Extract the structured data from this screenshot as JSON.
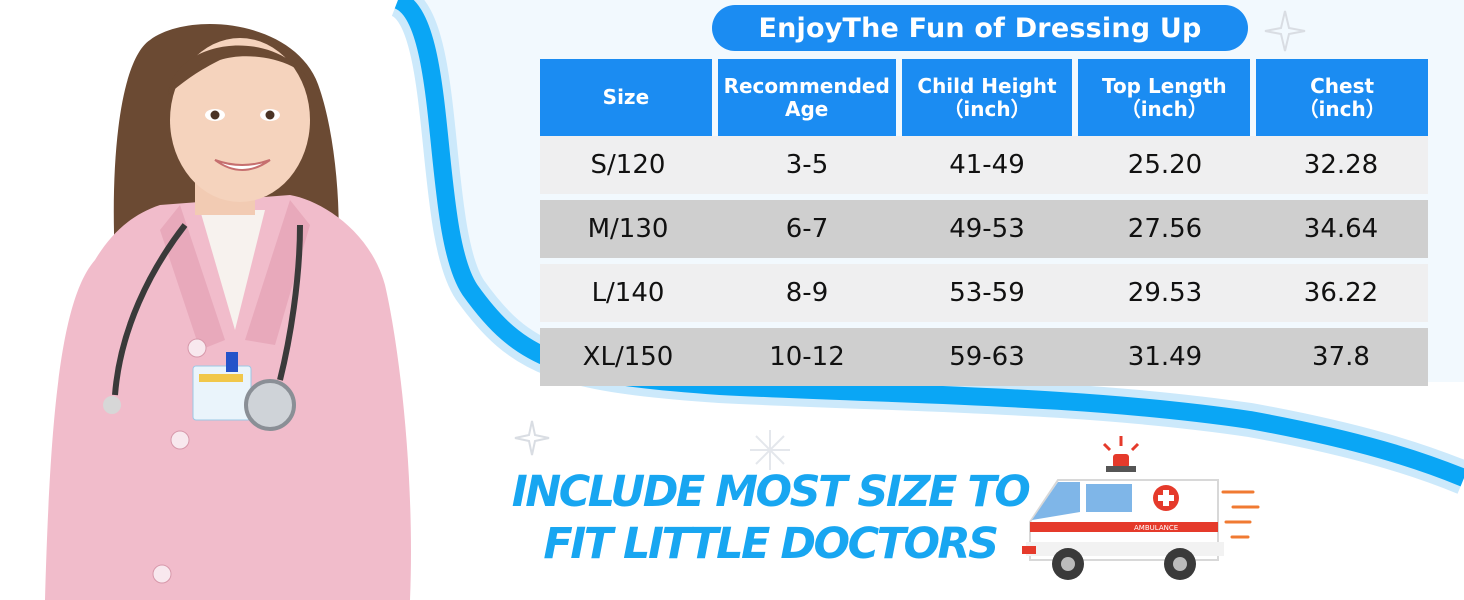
{
  "title": "EnjoyThe Fun of Dressing Up",
  "table": {
    "headers": [
      [
        "Size"
      ],
      [
        "Recommended",
        "Age"
      ],
      [
        "Child Height",
        "（inch）"
      ],
      [
        "Top Length",
        "（inch）"
      ],
      [
        "Chest",
        "（inch）"
      ]
    ],
    "rows": [
      [
        "S/120",
        "3-5",
        "41-49",
        "25.20",
        "32.28"
      ],
      [
        "M/130",
        "6-7",
        "49-53",
        "27.56",
        "34.64"
      ],
      [
        "L/140",
        "8-9",
        "53-59",
        "29.53",
        "36.22"
      ],
      [
        "XL/150",
        "10-12",
        "59-63",
        "31.49",
        "37.8"
      ]
    ]
  },
  "slogan": {
    "line1": "INCLUDE MOST SIZE TO",
    "line2": "FIT LITTLE DOCTORS"
  },
  "ambulance_label": "AMBULANCE",
  "colors": {
    "accent_blue": "#1b8cf2",
    "wave_blue": "#0aa6f5",
    "slogan_blue": "#18a6f1",
    "row_light": "#efeff0",
    "row_dark": "#cfcfcf",
    "coat_pink": "#f1bccb",
    "ambulance_red": "#e53a2b"
  }
}
